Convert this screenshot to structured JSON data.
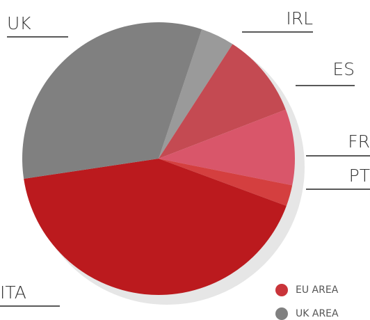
{
  "chart_data": {
    "type": "pie",
    "categories": [
      "IRL",
      "ES",
      "FR",
      "PT",
      "ITA",
      "UK"
    ],
    "values": [
      4,
      10,
      9,
      2.5,
      42,
      32.5
    ],
    "colors": [
      "#9a9a9a",
      "#c44a52",
      "#d9566a",
      "#d43f3f",
      "#bb1a1e",
      "#808080"
    ],
    "legend": [
      {
        "name": "EU AREA",
        "color": "#c9343a"
      },
      {
        "name": "UK AREA",
        "color": "#808080"
      }
    ]
  }
}
